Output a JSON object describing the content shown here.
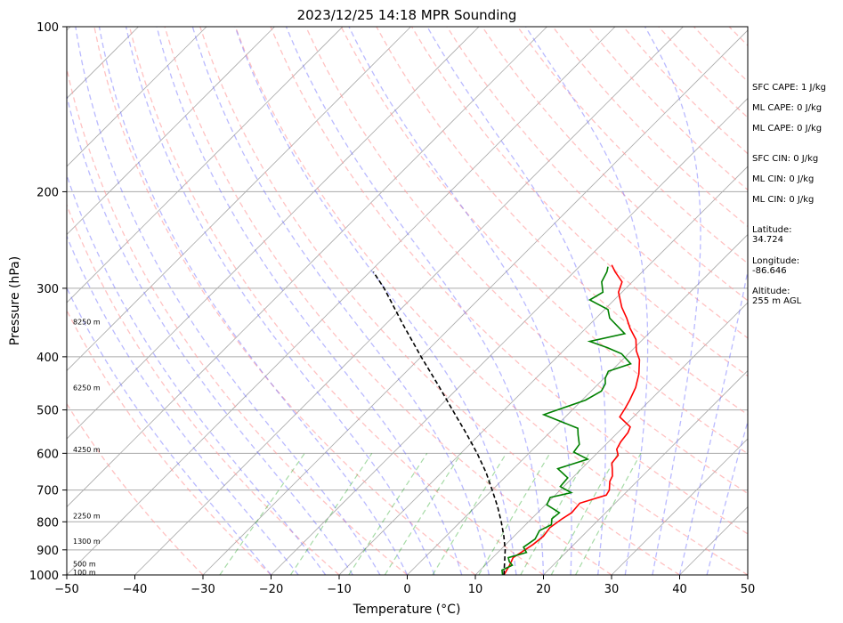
{
  "chart_data": {
    "type": "line",
    "title": "2023/12/25 14:18 MPR Sounding",
    "xlabel": "Temperature (°C)",
    "ylabel": "Pressure (hPa)",
    "xlim": [
      -50,
      50
    ],
    "ylim": [
      1000,
      100
    ],
    "y_scale": "log",
    "grid": true,
    "x_ticks": [
      "−50",
      "−40",
      "−30",
      "−20",
      "−10",
      "0",
      "10",
      "20",
      "30",
      "40",
      "50"
    ],
    "x_tick_values": [
      -50,
      -40,
      -30,
      -20,
      -10,
      0,
      10,
      20,
      30,
      40,
      50
    ],
    "y_ticks": [
      "100",
      "200",
      "300",
      "400",
      "500",
      "600",
      "700",
      "800",
      "900",
      "1000"
    ],
    "y_tick_values": [
      100,
      200,
      300,
      400,
      500,
      600,
      700,
      800,
      900,
      1000
    ],
    "series": [
      {
        "color": "#ff0000",
        "points": [
          [
            14.2,
            1000
          ],
          [
            13.6,
            960
          ],
          [
            13.0,
            930
          ],
          [
            13.4,
            910
          ],
          [
            14.0,
            880
          ],
          [
            14.3,
            850
          ],
          [
            14.0,
            820
          ],
          [
            14.5,
            790
          ],
          [
            15.0,
            770
          ],
          [
            14.8,
            740
          ],
          [
            17.5,
            715
          ],
          [
            17.2,
            700
          ],
          [
            16.0,
            675
          ],
          [
            15.6,
            660
          ],
          [
            14.5,
            640
          ],
          [
            13.6,
            625
          ],
          [
            13.4,
            605
          ],
          [
            12.3,
            590
          ],
          [
            11.8,
            572
          ],
          [
            11.5,
            550
          ],
          [
            11.0,
            537
          ],
          [
            8.0,
            515
          ],
          [
            7.5,
            496
          ],
          [
            7.0,
            480
          ],
          [
            6.0,
            455
          ],
          [
            4.5,
            430
          ],
          [
            2.5,
            405
          ],
          [
            0.7,
            390
          ],
          [
            -1.0,
            372
          ],
          [
            -3.5,
            355
          ],
          [
            -5.5,
            340
          ],
          [
            -7.8,
            325
          ],
          [
            -10.5,
            305
          ],
          [
            -11.5,
            292
          ],
          [
            -14.0,
            280
          ],
          [
            -15.5,
            272
          ]
        ]
      },
      {
        "color": "#008000",
        "points": [
          [
            14.0,
            1000
          ],
          [
            13.2,
            980
          ],
          [
            14.0,
            960
          ],
          [
            13.0,
            945
          ],
          [
            12.3,
            930
          ],
          [
            14.2,
            910
          ],
          [
            13.0,
            890
          ],
          [
            13.5,
            860
          ],
          [
            12.9,
            830
          ],
          [
            13.8,
            810
          ],
          [
            13.0,
            790
          ],
          [
            13.2,
            770
          ],
          [
            10.2,
            745
          ],
          [
            9.6,
            722
          ],
          [
            12.0,
            708
          ],
          [
            9.5,
            690
          ],
          [
            9.3,
            665
          ],
          [
            6.5,
            640
          ],
          [
            9.5,
            615
          ],
          [
            6.4,
            597
          ],
          [
            6.1,
            578
          ],
          [
            4.5,
            555
          ],
          [
            3.5,
            540
          ],
          [
            -3.5,
            510
          ],
          [
            0.5,
            480
          ],
          [
            1.5,
            462
          ],
          [
            1.0,
            448
          ],
          [
            0.2,
            438
          ],
          [
            -0.4,
            425
          ],
          [
            1.8,
            412
          ],
          [
            -1.0,
            395
          ],
          [
            -4.0,
            385
          ],
          [
            -7.5,
            375
          ],
          [
            -3.5,
            363
          ],
          [
            -8.0,
            340
          ],
          [
            -9.5,
            328
          ],
          [
            -13.6,
            315
          ],
          [
            -12.8,
            305
          ],
          [
            -14.5,
            292
          ],
          [
            -15.2,
            280
          ],
          [
            -15.8,
            274
          ]
        ]
      },
      {
        "color": "#000000",
        "dashed": true,
        "points": [
          [
            14.2,
            1000
          ],
          [
            12.5,
            950
          ],
          [
            10.7,
            900
          ],
          [
            8.5,
            850
          ],
          [
            6.0,
            800
          ],
          [
            3.2,
            750
          ],
          [
            0.0,
            700
          ],
          [
            -3.5,
            650
          ],
          [
            -7.6,
            600
          ],
          [
            -12.3,
            550
          ],
          [
            -17.6,
            500
          ],
          [
            -23.4,
            450
          ],
          [
            -30.0,
            400
          ],
          [
            -37.3,
            350
          ],
          [
            -45.5,
            300
          ],
          [
            -49.5,
            280
          ]
        ]
      }
    ],
    "height_labels": [
      {
        "label": "100 m",
        "p": 988
      },
      {
        "label": "500 m",
        "p": 955
      },
      {
        "label": "1300 m",
        "p": 868
      },
      {
        "label": "2250 m",
        "p": 780
      },
      {
        "label": "4250 m",
        "p": 590
      },
      {
        "label": "6250 m",
        "p": 455
      },
      {
        "label": "8250 m",
        "p": 345
      }
    ],
    "annotations": [
      "SFC CAPE: 1 J/kg",
      "ML CAPE: 0 J/kg",
      "ML CAPE: 0 J/kg",
      "SFC CIN: 0 J/kg",
      "ML CIN: 0 J/kg",
      "ML CIN: 0 J/kg",
      "Latitude:",
      "34.724",
      "Longitude:",
      "-86.646",
      "Altitude:",
      "255 m AGL"
    ]
  }
}
